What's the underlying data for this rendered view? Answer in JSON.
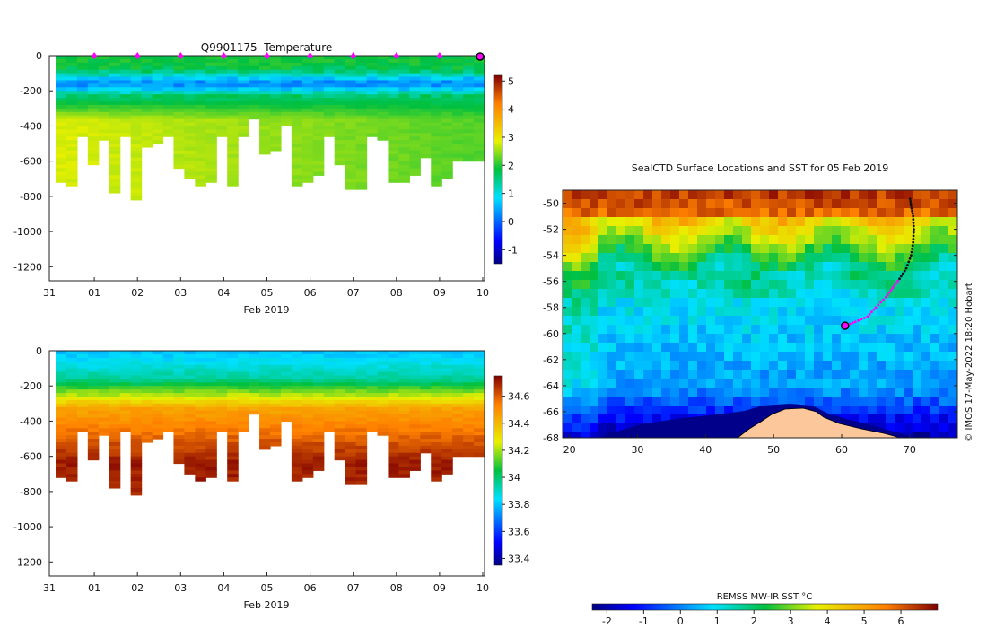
{
  "chart_data": [
    {
      "type": "heatmap",
      "title": "Q9901175  Temperature",
      "xlabel": "Feb 2019",
      "x_tick_labels": [
        "31",
        "01",
        "02",
        "03",
        "04",
        "05",
        "06",
        "07",
        "08",
        "09",
        "10"
      ],
      "y_tick_labels": [
        "0",
        "-200",
        "-400",
        "-600",
        "-800",
        "-1000",
        "-1200"
      ],
      "ylim": [
        -1280,
        0
      ],
      "x_range_days": [
        0,
        10
      ],
      "colorbar_ticks": [
        "-1",
        "0",
        "1",
        "2",
        "3",
        "4",
        "5"
      ],
      "colorbar_range": [
        -1.5,
        5.2
      ],
      "surfacing_markers_days": [
        1,
        2,
        3,
        4,
        5,
        6,
        7,
        8,
        9
      ],
      "latest_position_day": 10,
      "profile_max_depths": [
        720,
        740,
        450,
        620,
        480,
        770,
        450,
        820,
        520,
        500,
        450,
        630,
        690,
        730,
        710,
        450,
        730,
        450,
        360,
        550,
        540,
        400,
        730,
        710,
        670,
        450,
        620,
        760,
        760,
        450,
        480,
        710,
        715,
        680,
        580,
        730,
        690,
        590,
        590,
        590
      ],
      "profile_values": {
        "surface": 1.9,
        "min_layer_near_150m": 0.3,
        "deep_west": 2.8,
        "deep_east": 2.2,
        "units": "°C"
      }
    },
    {
      "type": "heatmap",
      "title": "",
      "xlabel": "Feb 2019",
      "x_tick_labels": [
        "31",
        "01",
        "02",
        "03",
        "04",
        "05",
        "06",
        "07",
        "08",
        "09",
        "10"
      ],
      "y_tick_labels": [
        "0",
        "-200",
        "-400",
        "-600",
        "-800",
        "-1000",
        "-1200"
      ],
      "ylim": [
        -1280,
        0
      ],
      "x_range_days": [
        0,
        10
      ],
      "colorbar_ticks": [
        "33.4",
        "33.6",
        "33.8",
        "34",
        "34.2",
        "34.4",
        "34.6"
      ],
      "colorbar_range": [
        33.35,
        34.75
      ],
      "profile_max_depths": [
        720,
        740,
        450,
        620,
        480,
        770,
        450,
        820,
        520,
        500,
        450,
        630,
        690,
        730,
        710,
        450,
        730,
        450,
        360,
        550,
        540,
        400,
        730,
        710,
        670,
        450,
        620,
        760,
        760,
        450,
        480,
        710,
        715,
        680,
        580,
        730,
        690,
        590,
        590,
        590
      ],
      "profile_values": {
        "surface": 33.85,
        "at_200m": 34.2,
        "deep": 34.65
      }
    },
    {
      "type": "heatmap",
      "title": "SealCTD Surface Locations and SST for 05 Feb 2019",
      "x_tick_labels": [
        "20",
        "30",
        "40",
        "50",
        "60",
        "70"
      ],
      "y_tick_labels": [
        "-50",
        "-52",
        "-54",
        "-56",
        "-58",
        "-60",
        "-62",
        "-64",
        "-66",
        "-68"
      ],
      "xlim": [
        19,
        77
      ],
      "ylim": [
        -68,
        -49
      ],
      "colorbar_label": "REMSS MW-IR SST °C",
      "colorbar_ticks": [
        "-2",
        "-1",
        "0",
        "1",
        "2",
        "3",
        "4",
        "5",
        "6"
      ],
      "colorbar_range": [
        -2.4,
        7
      ],
      "credit": "© IMOS 17-May-2022 18:20 Hobart",
      "track": [
        [
          60.5,
          -59.4
        ],
        [
          62,
          -59.1
        ],
        [
          63.8,
          -58.7
        ],
        [
          65,
          -58.0
        ],
        [
          66.5,
          -57.2
        ],
        [
          67.5,
          -56.5
        ],
        [
          68.5,
          -55.8
        ],
        [
          69.5,
          -55.0
        ],
        [
          70.2,
          -54.0
        ],
        [
          70.5,
          -53.0
        ],
        [
          70.6,
          -52.0
        ],
        [
          70.5,
          -51.0
        ],
        [
          70.2,
          -50.2
        ],
        [
          70.0,
          -49.5
        ]
      ],
      "latest_position": [
        60.5,
        -59.4
      ]
    }
  ]
}
